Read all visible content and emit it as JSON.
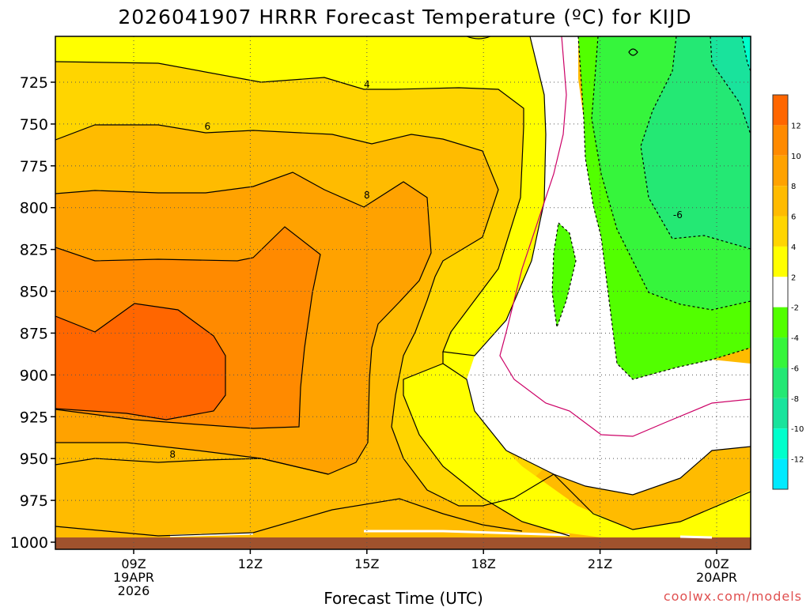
{
  "chart_data": {
    "type": "contour",
    "title": "2026041907 HRRR Forecast Temperature (ºC) for KIJD",
    "xlabel": "Forecast Time (UTC)",
    "ylabel": "",
    "credit": "coolwx.com/models",
    "y_axis": {
      "ticks": [
        725,
        750,
        775,
        800,
        825,
        850,
        875,
        900,
        925,
        950,
        975,
        1000
      ],
      "inverted": true,
      "range": [
        700,
        1000
      ]
    },
    "x_axis": {
      "range_hours": [
        7,
        25
      ],
      "ticks": [
        {
          "hour": 9,
          "lines": [
            "09Z",
            "19APR",
            "2026"
          ]
        },
        {
          "hour": 12,
          "lines": [
            "12Z"
          ]
        },
        {
          "hour": 15,
          "lines": [
            "15Z"
          ]
        },
        {
          "hour": 18,
          "lines": [
            "18Z"
          ]
        },
        {
          "hour": 21,
          "lines": [
            "21Z"
          ]
        },
        {
          "hour": 24,
          "lines": [
            "00Z",
            "20APR"
          ]
        }
      ]
    },
    "colorbar": {
      "bins": [
        {
          "range": "12 to 14",
          "color": "#ff6600"
        },
        {
          "range": "10 to 12",
          "color": "#ff8a00"
        },
        {
          "range": "8 to 10",
          "color": "#ffa200"
        },
        {
          "range": "6 to 8",
          "color": "#ffbb00"
        },
        {
          "range": "4 to 6",
          "color": "#ffd500"
        },
        {
          "range": "2 to 4",
          "color": "#ffff00"
        },
        {
          "range": "-2 to 2",
          "color": "#ffffff"
        },
        {
          "range": "-4 to -2",
          "color": "#52ff00"
        },
        {
          "range": "-6 to -4",
          "color": "#36f53c"
        },
        {
          "range": "-8 to -6",
          "color": "#24e874"
        },
        {
          "range": "-10 to -8",
          "color": "#19e39c"
        },
        {
          "range": "-12 to -10",
          "color": "#00ffcc"
        },
        {
          "range": "-14 to -12",
          "color": "#00eaff"
        }
      ],
      "labels": [
        "12",
        "10",
        "8",
        "6",
        "4",
        "2",
        "-2",
        "-4",
        "-6",
        "-8",
        "-10",
        "-12"
      ]
    },
    "contour_labels": [
      {
        "text": "4",
        "hour": 15.0,
        "pressure": 726
      },
      {
        "text": "6",
        "hour": 10.9,
        "pressure": 751
      },
      {
        "text": "8",
        "hour": 15.0,
        "pressure": 792
      },
      {
        "text": "8",
        "hour": 10.0,
        "pressure": 947
      },
      {
        "text": "-6",
        "hour": 23.0,
        "pressure": 804
      }
    ],
    "surface_color": "#a0522d"
  }
}
